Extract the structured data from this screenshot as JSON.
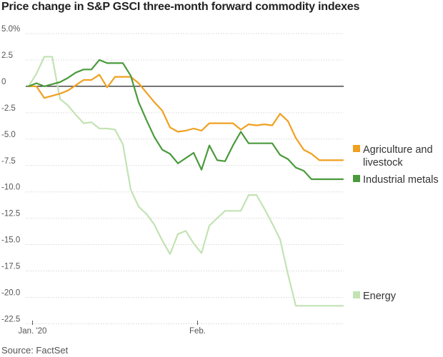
{
  "title": "Price change in S&P GSCI three-month forward commodity indexes",
  "source": "Source: FactSet",
  "chart_data": {
    "type": "line",
    "title": "Price change in S&P GSCI three-month forward commodity indexes",
    "xlabel": "",
    "ylabel": "",
    "ylim": [
      -22.5,
      5.0
    ],
    "yticks": [
      5.0,
      2.5,
      0,
      -2.5,
      -5.0,
      -7.5,
      -10.0,
      -12.5,
      -15.0,
      -17.5,
      -20.0,
      -22.5
    ],
    "ytick_labels": [
      "5.0%",
      "2.5",
      "0",
      "-2.5",
      "-5.0",
      "-7.5",
      "-10.0",
      "-12.5",
      "-15.0",
      "-17.5",
      "-20.0",
      "-22.5"
    ],
    "xlim": [
      0,
      40
    ],
    "xticks": [
      {
        "x": 0.5,
        "label": "Jan. '20"
      },
      {
        "x": 21.5,
        "label": "Feb."
      }
    ],
    "grid": true,
    "legend_position": "right",
    "series": [
      {
        "name": "Agriculture and livestock",
        "color": "#f0a020",
        "x": [
          0,
          1,
          2,
          3,
          4,
          5,
          6,
          7,
          8,
          9,
          10,
          11,
          12,
          13,
          14,
          15,
          16,
          17,
          18,
          19,
          20,
          21,
          22,
          23,
          24,
          25,
          26,
          27,
          28,
          29,
          30,
          31,
          32,
          33,
          34,
          35,
          36,
          37,
          38,
          39,
          40
        ],
        "values": [
          0.0,
          0.0,
          -1.1,
          -0.9,
          -0.7,
          -0.4,
          0.1,
          0.6,
          0.6,
          1.1,
          -0.1,
          0.9,
          0.9,
          0.9,
          0.3,
          -0.6,
          -1.5,
          -2.3,
          -3.9,
          -4.3,
          -4.2,
          -4.0,
          -4.2,
          -3.5,
          -3.5,
          -3.5,
          -3.5,
          -4.1,
          -3.6,
          -3.7,
          -3.6,
          -3.7,
          -2.6,
          -3.3,
          -4.9,
          -6.0,
          -6.4,
          -7.0,
          -7.0,
          -7.0,
          -7.0
        ]
      },
      {
        "name": "Industrial metals",
        "color": "#4a9a3c",
        "x": [
          0,
          1,
          2,
          3,
          4,
          5,
          6,
          7,
          8,
          9,
          10,
          11,
          12,
          13,
          14,
          15,
          16,
          17,
          18,
          19,
          20,
          21,
          22,
          23,
          24,
          25,
          26,
          27,
          28,
          29,
          30,
          31,
          32,
          33,
          34,
          35,
          36,
          37,
          38,
          39,
          40
        ],
        "values": [
          0.0,
          0.3,
          0.0,
          0.2,
          0.4,
          0.8,
          1.3,
          1.6,
          1.6,
          2.5,
          2.2,
          2.2,
          2.2,
          1.0,
          -1.5,
          -3.2,
          -4.8,
          -6.0,
          -6.4,
          -7.3,
          -6.8,
          -6.3,
          -7.9,
          -5.6,
          -7.0,
          -7.1,
          -5.6,
          -4.3,
          -5.4,
          -5.4,
          -5.4,
          -5.4,
          -6.5,
          -6.9,
          -7.7,
          -8.0,
          -8.8,
          -8.8,
          -8.8,
          -8.8,
          -8.8
        ]
      },
      {
        "name": "Energy",
        "color": "#c2e3b3",
        "x": [
          0,
          1,
          2,
          3,
          4,
          5,
          6,
          7,
          8,
          9,
          10,
          11,
          12,
          13,
          14,
          15,
          16,
          17,
          18,
          19,
          20,
          21,
          22,
          23,
          24,
          25,
          26,
          27,
          28,
          29,
          30,
          31,
          32,
          33,
          34,
          35,
          36,
          37,
          38,
          39,
          40
        ],
        "values": [
          0.0,
          1.2,
          2.8,
          2.8,
          -1.2,
          -1.8,
          -2.7,
          -3.5,
          -3.4,
          -4.0,
          -4.0,
          -4.1,
          -5.5,
          -9.8,
          -11.4,
          -12.1,
          -13.1,
          -14.6,
          -15.9,
          -14.0,
          -13.7,
          -14.9,
          -15.8,
          -13.2,
          -12.5,
          -11.8,
          -11.8,
          -11.8,
          -10.3,
          -10.3,
          -11.6,
          -13.0,
          -14.5,
          -17.8,
          -20.8,
          -20.8,
          -20.8,
          -20.8,
          -20.8,
          -20.8,
          -20.8
        ]
      }
    ]
  }
}
